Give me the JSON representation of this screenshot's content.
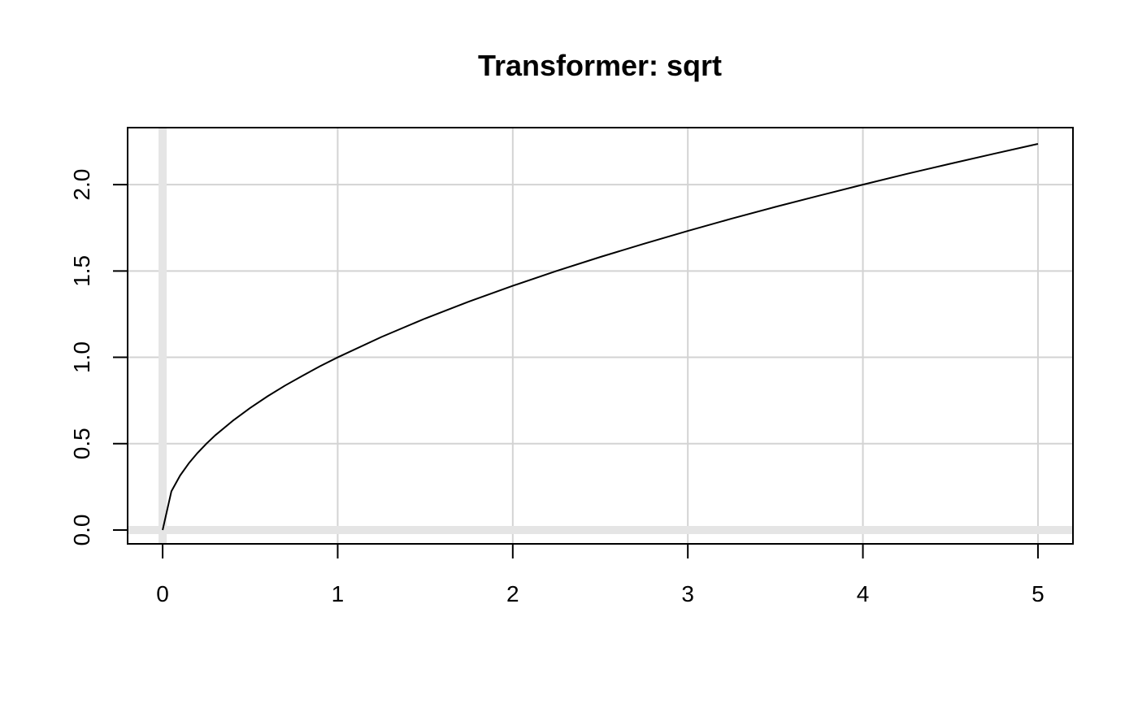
{
  "chart_data": {
    "type": "line",
    "title": "Transformer: sqrt",
    "xlabel": "",
    "ylabel": "",
    "xlim": [
      -0.2,
      5.2
    ],
    "ylim": [
      -0.08,
      2.33
    ],
    "x_ticks": [
      0,
      1,
      2,
      3,
      4,
      5
    ],
    "x_tick_labels": [
      "0",
      "1",
      "2",
      "3",
      "4",
      "5"
    ],
    "y_ticks": [
      0.0,
      0.5,
      1.0,
      1.5,
      2.0
    ],
    "y_tick_labels": [
      "0.0",
      "0.5",
      "1.0",
      "1.5",
      "2.0"
    ],
    "grid": true,
    "reference_lines": {
      "x": 0,
      "y": 0
    },
    "series": [
      {
        "x": [
          0,
          0.05,
          0.1,
          0.15,
          0.2,
          0.25,
          0.3,
          0.4,
          0.5,
          0.6,
          0.7,
          0.8,
          0.9,
          1.0,
          1.25,
          1.5,
          1.75,
          2.0,
          2.25,
          2.5,
          2.75,
          3.0,
          3.25,
          3.5,
          3.75,
          4.0,
          4.25,
          4.5,
          4.75,
          5.0
        ],
        "y": [
          0,
          0.224,
          0.316,
          0.387,
          0.447,
          0.5,
          0.548,
          0.632,
          0.707,
          0.775,
          0.837,
          0.894,
          0.949,
          1.0,
          1.118,
          1.225,
          1.323,
          1.414,
          1.5,
          1.581,
          1.658,
          1.732,
          1.803,
          1.871,
          1.936,
          2.0,
          2.062,
          2.121,
          2.179,
          2.236
        ]
      }
    ],
    "colors": {
      "line": "#000000",
      "grid": "#d3d3d3",
      "reference": "#e5e5e5",
      "frame": "#000000"
    }
  }
}
